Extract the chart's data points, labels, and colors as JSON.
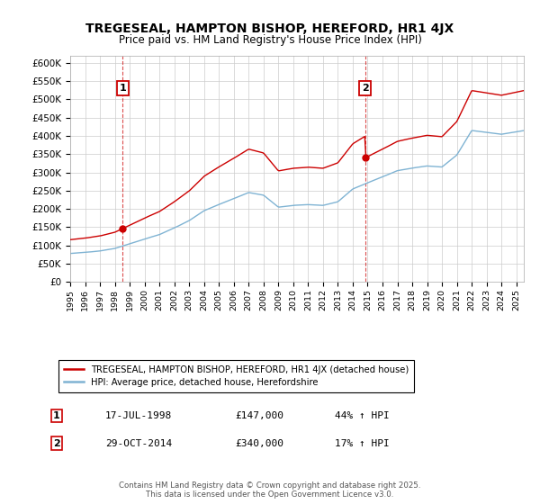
{
  "title": "TREGESEAL, HAMPTON BISHOP, HEREFORD, HR1 4JX",
  "subtitle": "Price paid vs. HM Land Registry's House Price Index (HPI)",
  "title_fontsize": 10,
  "subtitle_fontsize": 8.5,
  "ylim": [
    0,
    620000
  ],
  "background_color": "#ffffff",
  "grid_color": "#cccccc",
  "property_color": "#cc0000",
  "hpi_color": "#7fb3d3",
  "sale1_date": "17-JUL-1998",
  "sale1_price": 147000,
  "sale1_label": "44% ↑ HPI",
  "sale1_x": 1998.54,
  "sale2_date": "29-OCT-2014",
  "sale2_price": 340000,
  "sale2_label": "17% ↑ HPI",
  "sale2_x": 2014.83,
  "legend_property": "TREGESEAL, HAMPTON BISHOP, HEREFORD, HR1 4JX (detached house)",
  "legend_hpi": "HPI: Average price, detached house, Herefordshire",
  "footer": "Contains HM Land Registry data © Crown copyright and database right 2025.\nThis data is licensed under the Open Government Licence v3.0.",
  "ytick_labels": [
    "£0",
    "£50K",
    "£100K",
    "£150K",
    "£200K",
    "£250K",
    "£300K",
    "£350K",
    "£400K",
    "£450K",
    "£500K",
    "£550K",
    "£600K"
  ],
  "ytick_values": [
    0,
    50000,
    100000,
    150000,
    200000,
    250000,
    300000,
    350000,
    400000,
    450000,
    500000,
    550000,
    600000
  ],
  "xmin": 1995,
  "xmax": 2025.5
}
